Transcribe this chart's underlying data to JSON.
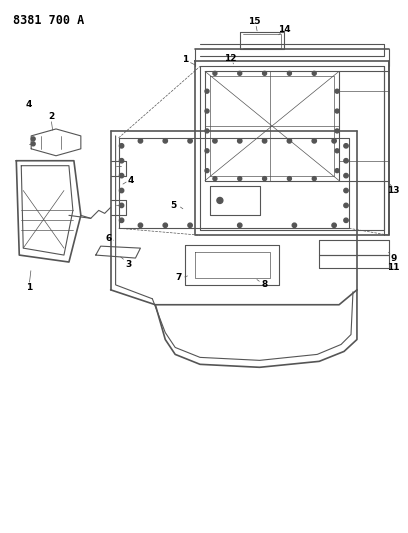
{
  "title": "8381 700 A",
  "bg_color": "#ffffff",
  "line_color": "#555555",
  "label_color": "#000000",
  "fig_width": 4.08,
  "fig_height": 5.33,
  "dpi": 100,
  "title_fontsize": 8.5,
  "label_fontsize": 6.5
}
